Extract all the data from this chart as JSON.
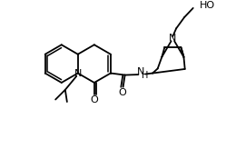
{
  "bg": "#ffffff",
  "lc": "#000000",
  "lw": 1.3,
  "fs": 7.5,
  "figsize": [
    2.6,
    1.75
  ],
  "dpi": 100,
  "xlim": [
    0,
    10
  ],
  "ylim": [
    0,
    6.73
  ]
}
